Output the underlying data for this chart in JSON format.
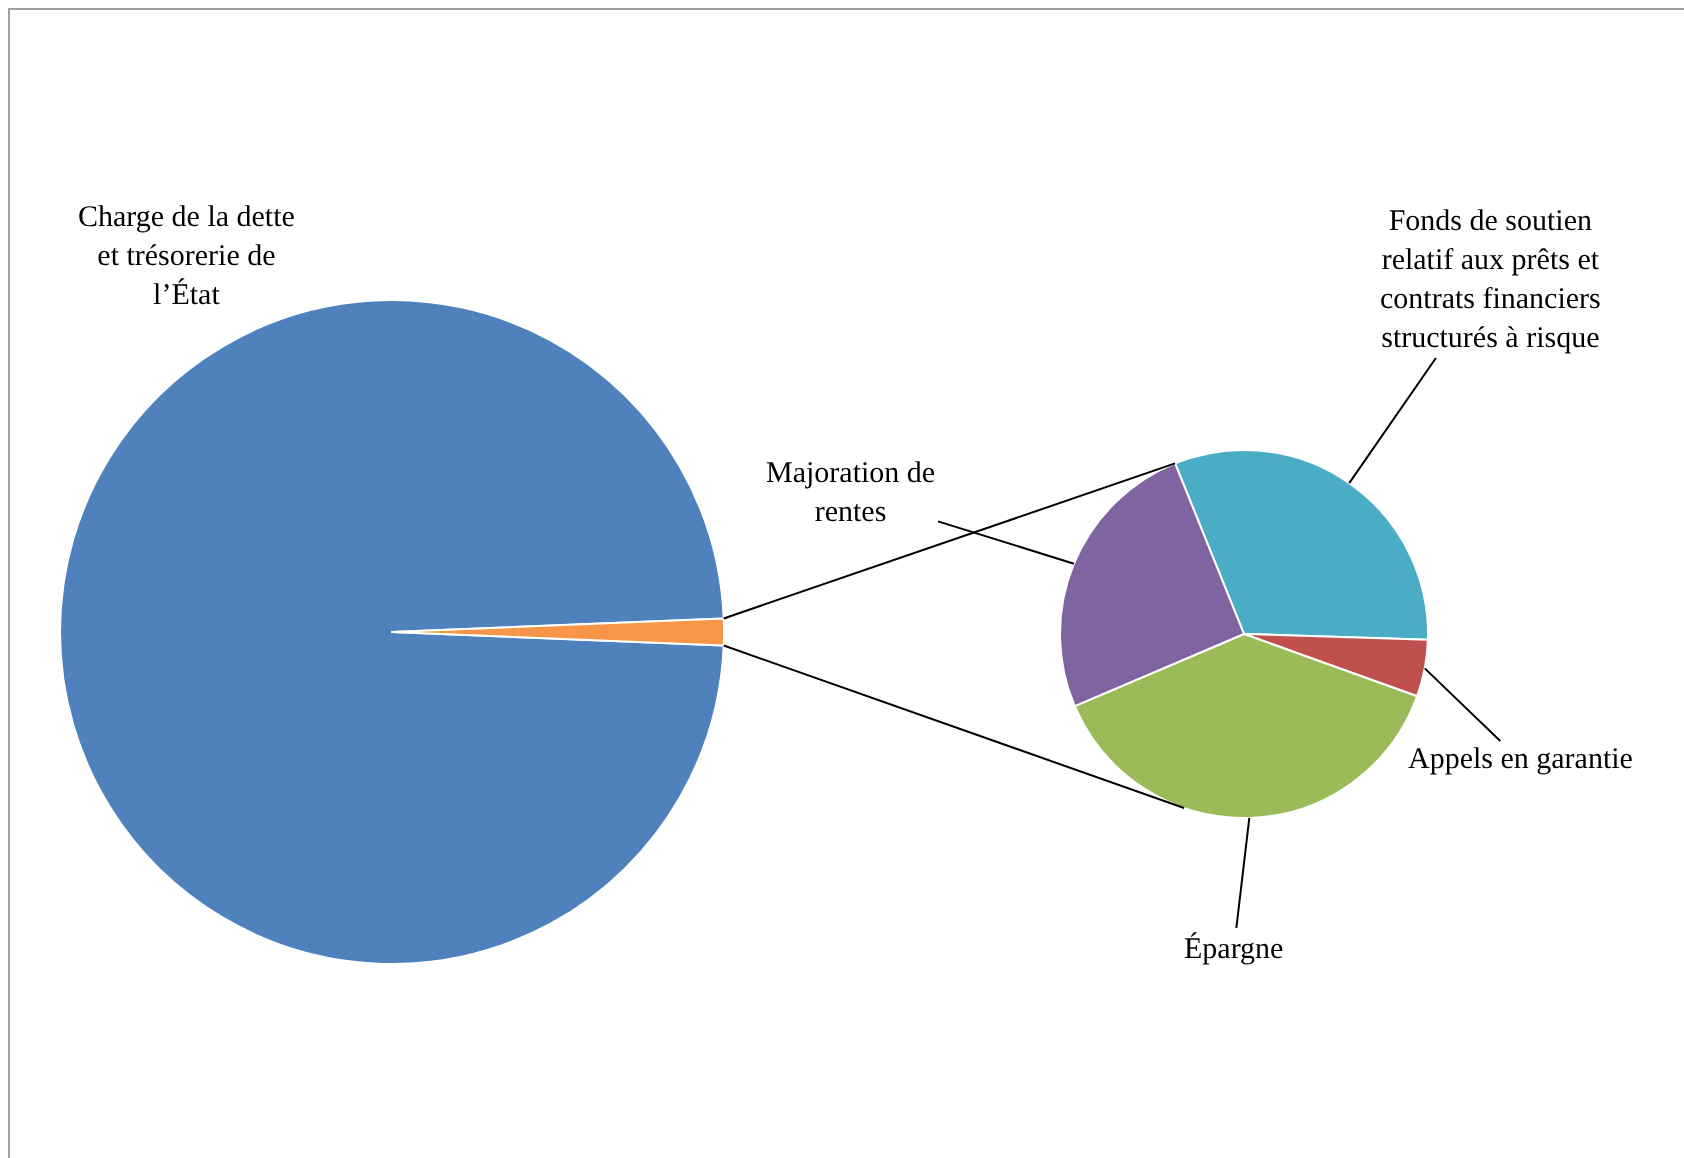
{
  "chart_data": [
    {
      "type": "pie",
      "categories": [
        "Charge de la dette et trésorerie de l’État",
        null
      ],
      "values": [
        98.7,
        1.3
      ],
      "colors": [
        "#4f81bd",
        "#f79646"
      ]
    },
    {
      "type": "pie",
      "categories": [
        "Fonds de soutien relatif aux prêts et contrats financiers structurés à risque",
        "Appels en garantie",
        "Épargne",
        "Majoration de rentes"
      ],
      "values": [
        31.6,
        5.0,
        38.1,
        25.3
      ],
      "colors": [
        "#4bacc6",
        "#c0504d",
        "#9bbb59",
        "#8064a2"
      ]
    }
  ]
}
